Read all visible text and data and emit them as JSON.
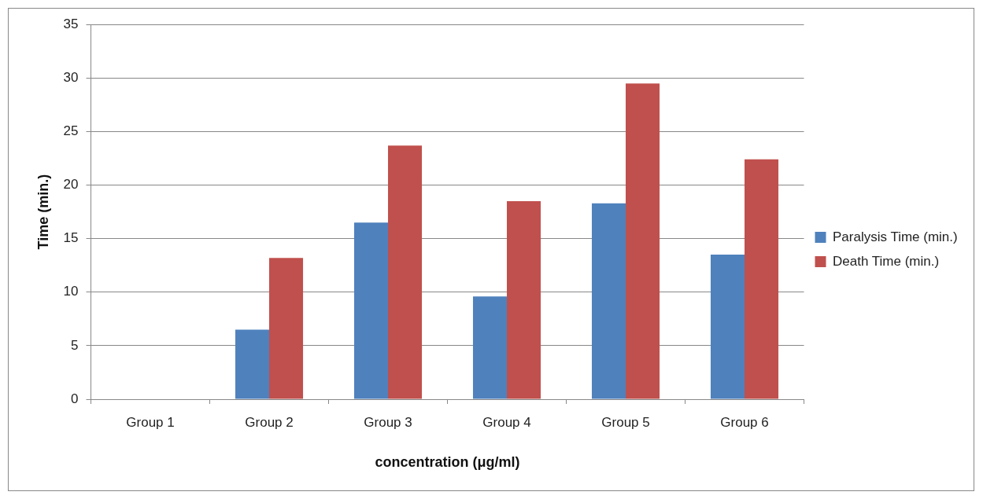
{
  "chart_data": {
    "type": "bar",
    "xlabel": "concentration (μg/ml)",
    "ylabel": "Time (min.)",
    "categories": [
      "Group 1",
      "Group 2",
      "Group 3",
      "Group 4",
      "Group 5",
      "Group 6"
    ],
    "series": [
      {
        "name": "Paralysis Time (min.)",
        "color": "#4f81bd",
        "values": [
          0,
          6.5,
          16.5,
          9.6,
          18.3,
          13.5
        ]
      },
      {
        "name": "Death Time (min.)",
        "color": "#c0504d",
        "values": [
          0,
          13.2,
          23.7,
          18.5,
          29.5,
          22.4
        ]
      }
    ],
    "ylim": [
      0,
      35
    ],
    "yticks": [
      0,
      5,
      10,
      15,
      20,
      25,
      30,
      35
    ],
    "grid": "y",
    "legend": "right"
  }
}
